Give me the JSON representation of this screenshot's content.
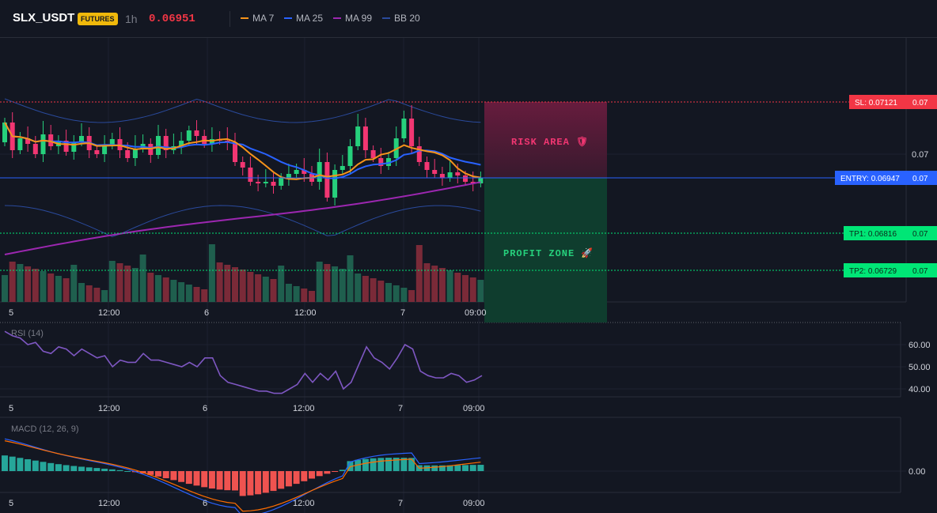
{
  "header": {
    "symbol": "SLX_USDT",
    "badge": "FUTURES",
    "timeframe": "1h",
    "price": "0.06951",
    "legend": [
      {
        "name": "MA 7",
        "color": "#f7931a"
      },
      {
        "name": "MA 25",
        "color": "#2962ff"
      },
      {
        "name": "MA 99",
        "color": "#9c27b0"
      },
      {
        "name": "BB 20",
        "color": "#2a4a9c"
      }
    ]
  },
  "price_axis": {
    "label": "0.07"
  },
  "trade": {
    "sl": {
      "label": "SL: 0.07121",
      "axis": "0.07",
      "color": "#f23645",
      "value": 0.07121
    },
    "entry": {
      "label": "ENTRY: 0.06947",
      "axis": "0.07",
      "color": "#2962ff",
      "value": 0.06947
    },
    "tp1": {
      "label": "TP1: 0.06816",
      "axis": "0.07",
      "color": "#00e676",
      "value": 0.06816
    },
    "tp2": {
      "label": "TP2: 0.06729",
      "axis": "0.07",
      "color": "#00e676",
      "value": 0.06729
    },
    "risk_label": "RISK AREA 🛡",
    "profit_label": "PROFIT ZONE 🚀"
  },
  "time_axis": [
    "5",
    "12:00",
    "6",
    "12:00",
    "7",
    "09:00"
  ],
  "rsi": {
    "title": "RSI (14)",
    "ticks": [
      "60.00",
      "50.00",
      "40.00"
    ],
    "ylim": [
      35,
      70
    ],
    "values": [
      66,
      64,
      63,
      60,
      61,
      57,
      56,
      59,
      58,
      55,
      58,
      56,
      54,
      55,
      50,
      53,
      52,
      52,
      56,
      53,
      53,
      52,
      51,
      50,
      52,
      50,
      54,
      54,
      46,
      43,
      42,
      41,
      40,
      39,
      39,
      38,
      38,
      40,
      42,
      47,
      43,
      47,
      44,
      48,
      40,
      43,
      51,
      59,
      54,
      52,
      49,
      54,
      60,
      58,
      48,
      46,
      45,
      45,
      47,
      46,
      43,
      44,
      46
    ]
  },
  "macd": {
    "title": "MACD (12, 26, 9)",
    "tick": "0.00"
  },
  "chart_data": [
    {
      "type": "candlestick",
      "title": "SLX_USDT 1h",
      "x_labels": [
        "5",
        "12:00",
        "6",
        "12:00",
        "7",
        "09:00"
      ],
      "price_labels": [
        "0.07"
      ],
      "levels": {
        "sl": 0.07121,
        "entry": 0.06947,
        "tp1": 0.06816,
        "tp2": 0.06729
      },
      "series": [
        "MA 7",
        "MA 25",
        "MA 99",
        "BB 20"
      ]
    },
    {
      "type": "line",
      "title": "RSI (14)",
      "y_ticks": [
        "60.00",
        "50.00",
        "40.00"
      ],
      "ylim": [
        35,
        70
      ]
    },
    {
      "type": "bar",
      "title": "MACD (12, 26, 9)",
      "y_ticks": [
        "0.00"
      ]
    }
  ]
}
